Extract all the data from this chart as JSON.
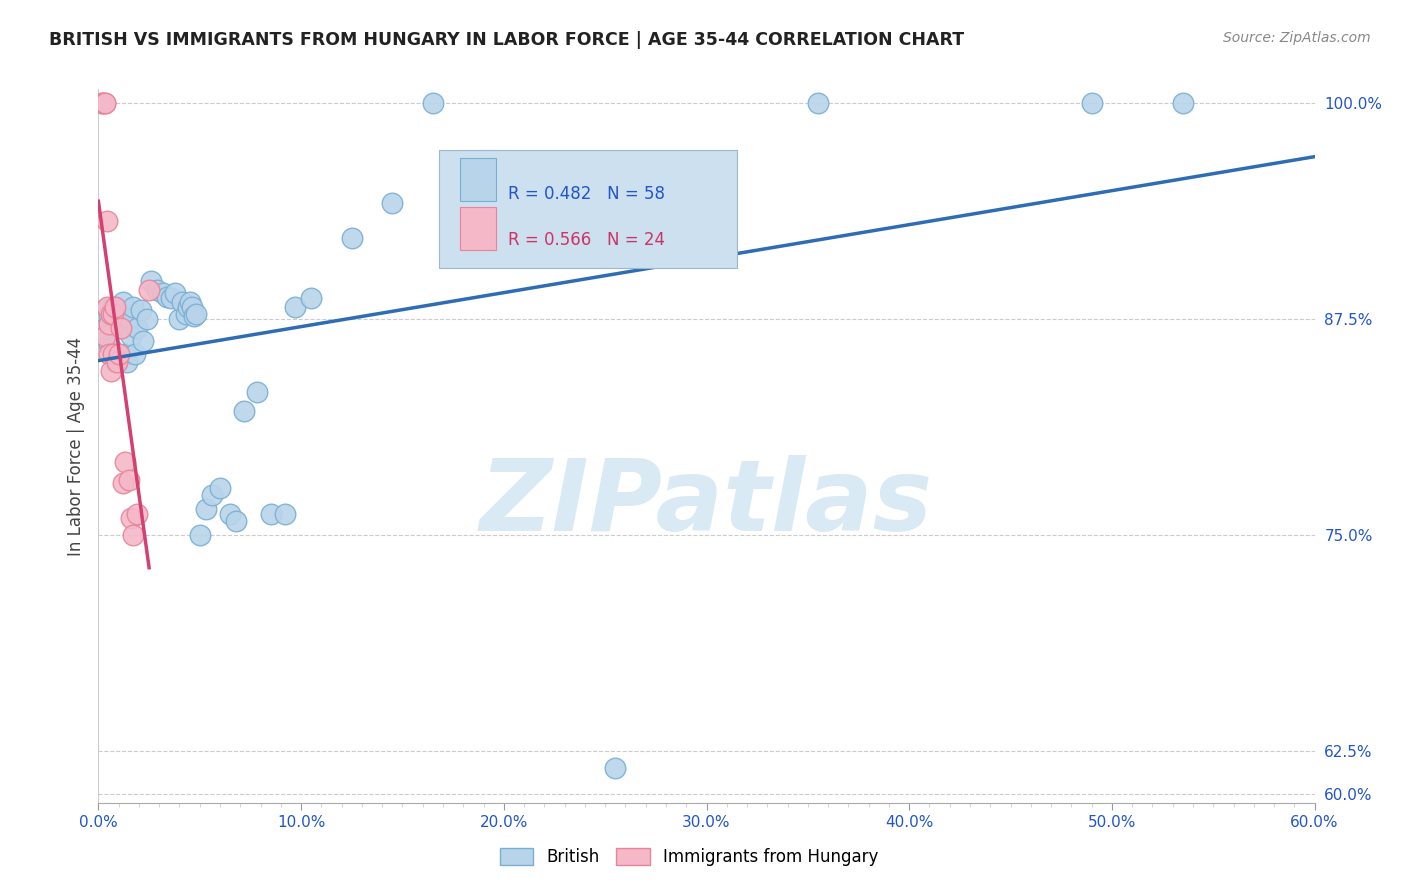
{
  "title": "BRITISH VS IMMIGRANTS FROM HUNGARY IN LABOR FORCE | AGE 35-44 CORRELATION CHART",
  "source": "Source: ZipAtlas.com",
  "ylabel": "In Labor Force | Age 35-44",
  "xlim": [
    0.0,
    0.6
  ],
  "ylim": [
    0.595,
    1.008
  ],
  "xtick_labels": [
    "0.0%",
    "",
    "",
    "",
    "",
    "",
    "",
    "",
    "",
    "",
    "10.0%",
    "",
    "",
    "",
    "",
    "",
    "",
    "",
    "",
    "",
    "20.0%",
    "",
    "",
    "",
    "",
    "",
    "",
    "",
    "",
    "",
    "30.0%",
    "",
    "",
    "",
    "",
    "",
    "",
    "",
    "",
    "",
    "40.0%",
    "",
    "",
    "",
    "",
    "",
    "",
    "",
    "",
    "",
    "50.0%",
    "",
    "",
    "",
    "",
    "",
    "",
    "",
    "",
    "",
    "60.0%"
  ],
  "xtick_vals": [
    0.0,
    0.01,
    0.02,
    0.03,
    0.04,
    0.05,
    0.06,
    0.07,
    0.08,
    0.09,
    0.1,
    0.11,
    0.12,
    0.13,
    0.14,
    0.15,
    0.16,
    0.17,
    0.18,
    0.19,
    0.2,
    0.21,
    0.22,
    0.23,
    0.24,
    0.25,
    0.26,
    0.27,
    0.28,
    0.29,
    0.3,
    0.31,
    0.32,
    0.33,
    0.34,
    0.35,
    0.36,
    0.37,
    0.38,
    0.39,
    0.4,
    0.41,
    0.42,
    0.43,
    0.44,
    0.45,
    0.46,
    0.47,
    0.48,
    0.49,
    0.5,
    0.51,
    0.52,
    0.53,
    0.54,
    0.55,
    0.56,
    0.57,
    0.58,
    0.59,
    0.6
  ],
  "xtick_major_vals": [
    0.0,
    0.1,
    0.2,
    0.3,
    0.4,
    0.5,
    0.6
  ],
  "xtick_major_labels": [
    "0.0%",
    "10.0%",
    "20.0%",
    "30.0%",
    "40.0%",
    "50.0%",
    "60.0%"
  ],
  "ytick_vals": [
    1.0,
    0.875,
    0.75,
    0.625,
    0.6
  ],
  "ytick_labels": [
    "100.0%",
    "87.5%",
    "75.0%",
    "62.5%",
    "60.0%"
  ],
  "british_R": 0.482,
  "british_N": 58,
  "hungary_R": 0.566,
  "hungary_N": 24,
  "british_color": "#b8d4ea",
  "british_edge_color": "#7aafd4",
  "hungary_color": "#f4b8c8",
  "hungary_edge_color": "#e8849a",
  "trendline_british_color": "#2e6db4",
  "trendline_hungary_color": "#d44070",
  "legend_box_color": "#cce0f0",
  "background_color": "#ffffff",
  "watermark_color": "#daeaf5",
  "british_x": [
    0.003,
    0.003,
    0.003,
    0.004,
    0.005,
    0.005,
    0.006,
    0.007,
    0.007,
    0.008,
    0.009,
    0.01,
    0.01,
    0.011,
    0.012,
    0.013,
    0.014,
    0.015,
    0.016,
    0.017,
    0.018,
    0.019,
    0.021,
    0.022,
    0.024,
    0.026,
    0.029,
    0.032,
    0.034,
    0.036,
    0.038,
    0.04,
    0.041,
    0.043,
    0.044,
    0.045,
    0.046,
    0.047,
    0.048,
    0.05,
    0.053,
    0.056,
    0.06,
    0.065,
    0.068,
    0.072,
    0.078,
    0.085,
    0.092,
    0.097,
    0.105,
    0.125,
    0.145,
    0.165,
    0.255,
    0.355,
    0.49,
    0.535
  ],
  "british_y": [
    0.88,
    0.875,
    0.87,
    0.865,
    0.878,
    0.86,
    0.858,
    0.882,
    0.855,
    0.85,
    0.852,
    0.878,
    0.87,
    0.872,
    0.885,
    0.855,
    0.85,
    0.875,
    0.865,
    0.882,
    0.855,
    0.87,
    0.88,
    0.862,
    0.875,
    0.897,
    0.892,
    0.89,
    0.888,
    0.887,
    0.89,
    0.875,
    0.885,
    0.878,
    0.882,
    0.885,
    0.882,
    0.877,
    0.878,
    0.75,
    0.765,
    0.773,
    0.777,
    0.762,
    0.758,
    0.822,
    0.833,
    0.762,
    0.762,
    0.882,
    0.887,
    0.922,
    0.942,
    1.0,
    0.615,
    1.0,
    1.0,
    1.0
  ],
  "hungary_x": [
    0.002,
    0.002,
    0.003,
    0.003,
    0.003,
    0.004,
    0.004,
    0.005,
    0.005,
    0.006,
    0.006,
    0.007,
    0.007,
    0.008,
    0.009,
    0.01,
    0.011,
    0.012,
    0.013,
    0.015,
    0.016,
    0.017,
    0.019,
    0.025
  ],
  "hungary_y": [
    1.0,
    1.0,
    1.0,
    1.0,
    0.865,
    0.932,
    0.882,
    0.872,
    0.855,
    0.878,
    0.845,
    0.878,
    0.855,
    0.882,
    0.85,
    0.855,
    0.87,
    0.78,
    0.792,
    0.782,
    0.76,
    0.75,
    0.762,
    0.892
  ]
}
